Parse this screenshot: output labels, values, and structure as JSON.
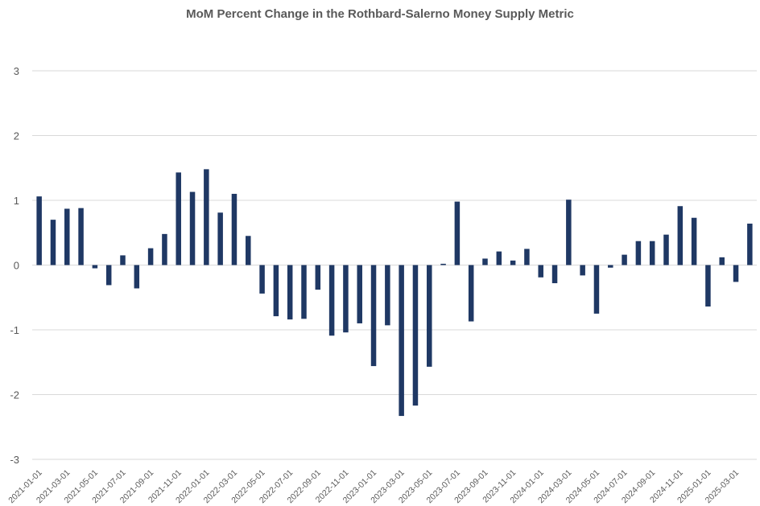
{
  "chart_data": {
    "type": "bar",
    "title": "MoM Percent Change in the Rothbard-Salerno Money Supply Metric",
    "xlabel": "",
    "ylabel": "",
    "ylim": [
      -3,
      3
    ],
    "yticks": [
      3,
      2,
      1,
      0,
      -1,
      -2,
      -3
    ],
    "grid": true,
    "legend": "none",
    "bar_color": "#1f3864",
    "categories": [
      "2021-01-01",
      "2021-02-01",
      "2021-03-01",
      "2021-04-01",
      "2021-05-01",
      "2021-06-01",
      "2021-07-01",
      "2021-08-01",
      "2021-09-01",
      "2021-10-01",
      "2021-11-01",
      "2021-12-01",
      "2022-01-01",
      "2022-02-01",
      "2022-03-01",
      "2022-04-01",
      "2022-05-01",
      "2022-06-01",
      "2022-07-01",
      "2022-08-01",
      "2022-09-01",
      "2022-10-01",
      "2022-11-01",
      "2022-12-01",
      "2023-01-01",
      "2023-02-01",
      "2023-03-01",
      "2023-04-01",
      "2023-05-01",
      "2023-06-01",
      "2023-07-01",
      "2023-08-01",
      "2023-09-01",
      "2023-10-01",
      "2023-11-01",
      "2023-12-01",
      "2024-01-01",
      "2024-02-01",
      "2024-03-01",
      "2024-04-01",
      "2024-05-01",
      "2024-06-01",
      "2024-07-01",
      "2024-08-01",
      "2024-09-01",
      "2024-10-01",
      "2024-11-01",
      "2024-12-01",
      "2025-01-01",
      "2025-02-01",
      "2025-03-01",
      "2025-04-01"
    ],
    "tick_labels": [
      "2021-01-01",
      "2021-03-01",
      "2021-05-01",
      "2021-07-01",
      "2021-09-01",
      "2021-11-01",
      "2022-01-01",
      "2022-03-01",
      "2022-05-01",
      "2022-07-01",
      "2022-09-01",
      "2022-11-01",
      "2023-01-01",
      "2023-03-01",
      "2023-05-01",
      "2023-07-01",
      "2023-09-01",
      "2023-11-01",
      "2024-01-01",
      "2024-03-01",
      "2024-05-01",
      "2024-07-01",
      "2024-09-01",
      "2024-11-01",
      "2025-01-01",
      "2025-03-01"
    ],
    "values": [
      1.06,
      0.7,
      0.87,
      0.88,
      -0.05,
      -0.31,
      0.15,
      -0.36,
      0.26,
      0.48,
      1.43,
      1.13,
      1.48,
      0.81,
      1.1,
      0.45,
      -0.44,
      -0.79,
      -0.84,
      -0.83,
      -0.38,
      -1.09,
      -1.04,
      -0.9,
      -1.56,
      -0.93,
      -2.33,
      -2.17,
      -1.57,
      0.02,
      0.98,
      -0.87,
      0.1,
      0.21,
      0.07,
      0.25,
      -0.19,
      -0.28,
      1.01,
      -0.16,
      -0.75,
      -0.04,
      0.16,
      0.37,
      0.37,
      0.47,
      0.91,
      0.73,
      -0.64,
      0.12,
      -0.26,
      0.64
    ]
  }
}
